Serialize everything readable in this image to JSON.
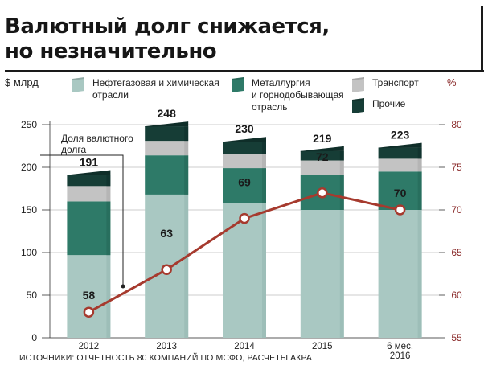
{
  "title": {
    "line1": "Валютный долг снижается,",
    "line2": "но незначительно"
  },
  "units": {
    "left": "$ млрд",
    "right": "%"
  },
  "legend": [
    {
      "label": "Нефтегазовая и химическая\nотрасли",
      "color": "#a9c8c2"
    },
    {
      "label": "Металлургия\nи горнодобывающая\nотрасль",
      "color": "#2e7a68"
    },
    {
      "label": "Транспорт",
      "color": "#c3c3c3"
    },
    {
      "label": "Прочие",
      "color": "#163d36"
    }
  ],
  "annotation": "Доля валютного\nдолга",
  "source": "ИСТОЧНИКИ: ОТЧЕТНОСТЬ 80 КОМПАНИЙ ПО МСФО, РАСЧЕТЫ АКРА",
  "colors": {
    "line": "#a63a2e",
    "right_axis_text": "#8a2a2a"
  },
  "chart_data": {
    "type": "bar",
    "stacked": true,
    "categories": [
      "2012",
      "2013",
      "2014",
      "2015",
      "6 мес.\n2016"
    ],
    "totals": [
      191,
      248,
      230,
      219,
      223
    ],
    "series": [
      {
        "name": "Нефтегазовая и химическая отрасли",
        "values": [
          97,
          168,
          158,
          150,
          150
        ]
      },
      {
        "name": "Металлургия и горнодобывающая отрасль",
        "values": [
          63,
          46,
          41,
          41,
          45
        ]
      },
      {
        "name": "Транспорт",
        "values": [
          18,
          17,
          17,
          17,
          15
        ]
      },
      {
        "name": "Прочие",
        "values": [
          13,
          17,
          14,
          11,
          13
        ]
      }
    ],
    "line": {
      "name": "Доля валютного долга",
      "axis": "right",
      "values": [
        58,
        63,
        69,
        72,
        70
      ]
    },
    "ylim": [
      0,
      250
    ],
    "yticks": [
      0,
      50,
      100,
      150,
      200,
      250
    ],
    "y2lim": [
      55,
      80
    ],
    "y2ticks": [
      55,
      60,
      65,
      70,
      75,
      80
    ],
    "grid": true,
    "legend_position": "top"
  }
}
